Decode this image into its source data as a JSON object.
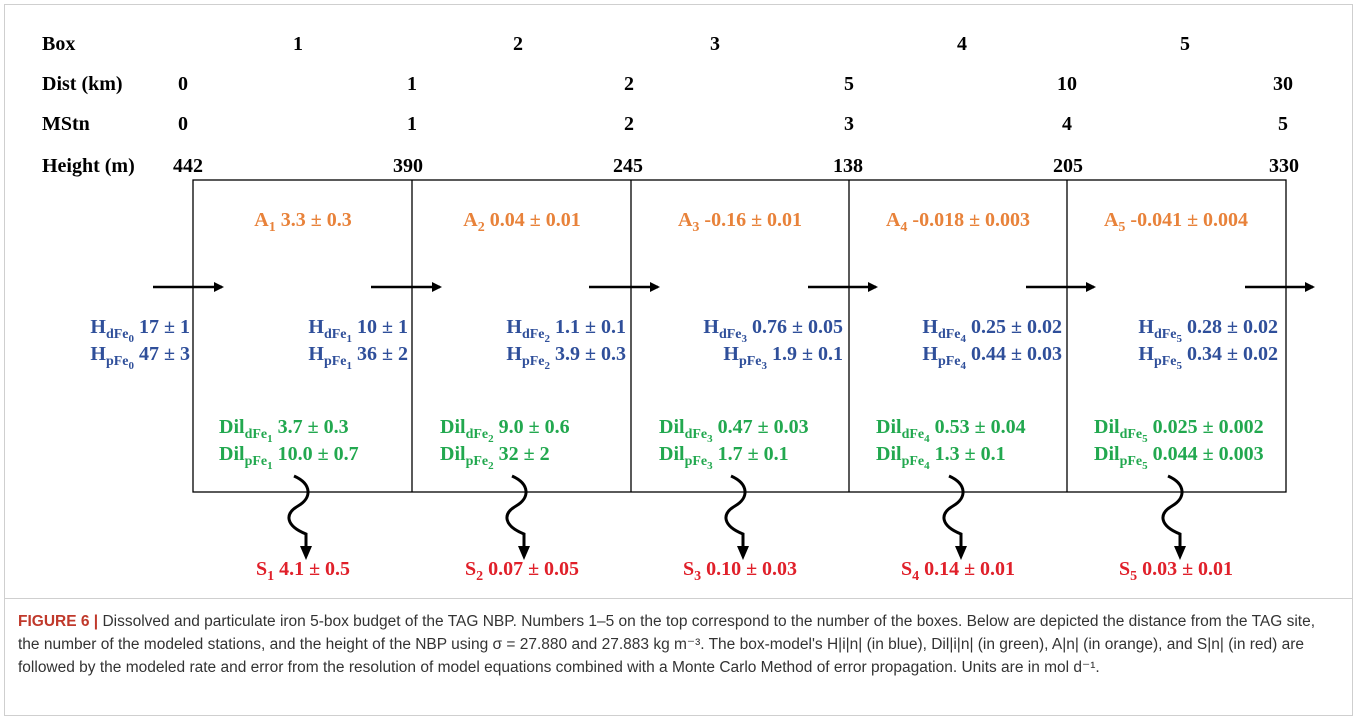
{
  "colors": {
    "A": "#e8823a",
    "H": "#2f4f9a",
    "Dil": "#22a84f",
    "S": "#e0202a",
    "frame": "#000000",
    "caption_label": "#c0392b"
  },
  "diagram": {
    "row_labels": {
      "box": "Box",
      "dist": "Dist (km)",
      "mstn": "MStn",
      "height": "Height (m)"
    },
    "box_numbers": [
      "1",
      "2",
      "3",
      "4",
      "5"
    ],
    "dist_values": [
      "0",
      "1",
      "2",
      "5",
      "10",
      "30"
    ],
    "mstn_values": [
      "0",
      "1",
      "2",
      "3",
      "4",
      "5"
    ],
    "height_values": [
      "442",
      "390",
      "245",
      "138",
      "205",
      "330"
    ],
    "A_vals": [
      {
        "sub": "1",
        "text": "3.3 ± 0.3"
      },
      {
        "sub": "2",
        "text": "0.04 ± 0.01"
      },
      {
        "sub": "3",
        "text": "-0.16 ± 0.01"
      },
      {
        "sub": "4",
        "text": "-0.018 ± 0.003"
      },
      {
        "sub": "5",
        "text": "-0.041 ± 0.004"
      }
    ],
    "H_vals": [
      {
        "sub": "0",
        "dFe": "17 ± 1",
        "pFe": "47 ± 3"
      },
      {
        "sub": "1",
        "dFe": "10 ± 1",
        "pFe": "36 ± 2"
      },
      {
        "sub": "2",
        "dFe": "1.1 ± 0.1",
        "pFe": "3.9 ± 0.3"
      },
      {
        "sub": "3",
        "dFe": "0.76 ± 0.05",
        "pFe": "1.9 ± 0.1"
      },
      {
        "sub": "4",
        "dFe": "0.25 ± 0.02",
        "pFe": "0.44 ± 0.03"
      },
      {
        "sub": "5",
        "dFe": "0.28 ± 0.02",
        "pFe": "0.34 ± 0.02"
      }
    ],
    "Dil_vals": [
      {
        "sub": "1",
        "dFe": "3.7 ± 0.3",
        "pFe": "10.0 ± 0.7"
      },
      {
        "sub": "2",
        "dFe": "9.0 ± 0.6",
        "pFe": "32 ± 2"
      },
      {
        "sub": "3",
        "dFe": "0.47 ± 0.03",
        "pFe": "1.7 ± 0.1"
      },
      {
        "sub": "4",
        "dFe": "0.53 ± 0.04",
        "pFe": "1.3 ± 0.1"
      },
      {
        "sub": "5",
        "dFe": "0.025 ± 0.002",
        "pFe": "0.044 ± 0.003"
      }
    ],
    "S_vals": [
      {
        "sub": "1",
        "text": "4.1 ± 0.5"
      },
      {
        "sub": "2",
        "text": "0.07 ± 0.05"
      },
      {
        "sub": "3",
        "text": "0.10 ± 0.03"
      },
      {
        "sub": "4",
        "text": "0.14 ± 0.01"
      },
      {
        "sub": "5",
        "text": "0.03 ± 0.01"
      }
    ]
  },
  "caption": {
    "label": "FIGURE 6 |",
    "text": "Dissolved and particulate iron 5-box budget of the TAG NBP. Numbers 1–5 on the top correspond to the number of the boxes. Below are depicted the distance from the TAG site, the number of the modeled stations, and the height of the NBP using σ = 27.880 and 27.883 kg m⁻³. The box-model's H|i|n| (in blue), Dil|i|n| (in green), A|n| (in orange), and S|n| (in red) are followed by the modeled rate and error from the resolution of model equations combined with a Monte Carlo Method of error propagation. Units are in mol d⁻¹."
  }
}
